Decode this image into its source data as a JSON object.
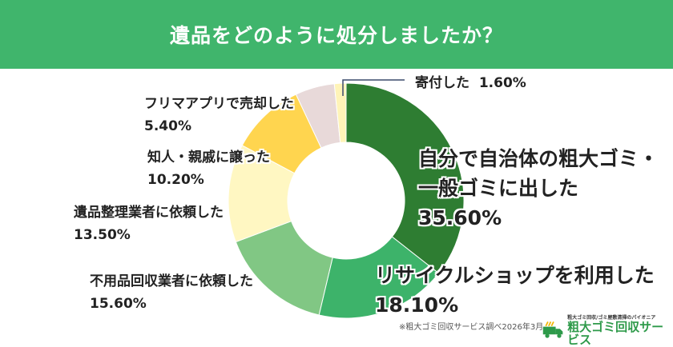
{
  "header": {
    "title": "遺品をどのように処分しましたか？"
  },
  "chart_data": {
    "type": "pie",
    "donut": true,
    "title": "遺品をどのように処分しましたか？",
    "unit": "%",
    "direction": "clockwise-from-top",
    "slices": [
      {
        "label": "自分で自治体の粗大ゴミ・一般ゴミに出した",
        "lines": [
          "自分で自治体の粗大ゴミ・",
          "一般ゴミに出した"
        ],
        "value": 35.6,
        "value_label": "35.60%",
        "color": "#2e7d32"
      },
      {
        "label": "リサイクルショップを利用した",
        "lines": [
          "リサイクルショップを利用した"
        ],
        "value": 18.1,
        "value_label": "18.10%",
        "color": "#3db36a"
      },
      {
        "label": "不用品回収業者に依頼した",
        "lines": [
          "不用品回収業者に依頼した"
        ],
        "value": 15.6,
        "value_label": "15.60%",
        "color": "#81c784"
      },
      {
        "label": "遺品整理業者に依頼した",
        "lines": [
          "遺品整理業者に依頼した"
        ],
        "value": 13.5,
        "value_label": "13.50%",
        "color": "#fff7c2"
      },
      {
        "label": "知人・親戚に譲った",
        "lines": [
          "知人・親戚に譲った"
        ],
        "value": 10.2,
        "value_label": "10.20%",
        "color": "#ffd54f"
      },
      {
        "label": "フリマアプリで売却した",
        "lines": [
          "フリマアプリで売却した"
        ],
        "value": 5.4,
        "value_label": "5.40%",
        "color": "#e8d9d9"
      },
      {
        "label": "寄付した",
        "lines": [
          "寄付した"
        ],
        "value": 1.6,
        "value_label": "1.60%",
        "color": "#fff4b8"
      }
    ]
  },
  "footer": {
    "note": "※粗大ゴミ回収サービス調べ2026年3月",
    "logo_tagline": "粗大ゴミ回収/ゴミ屋敷清掃のパイオニア",
    "logo_name": "粗大ゴミ回収サービス"
  }
}
